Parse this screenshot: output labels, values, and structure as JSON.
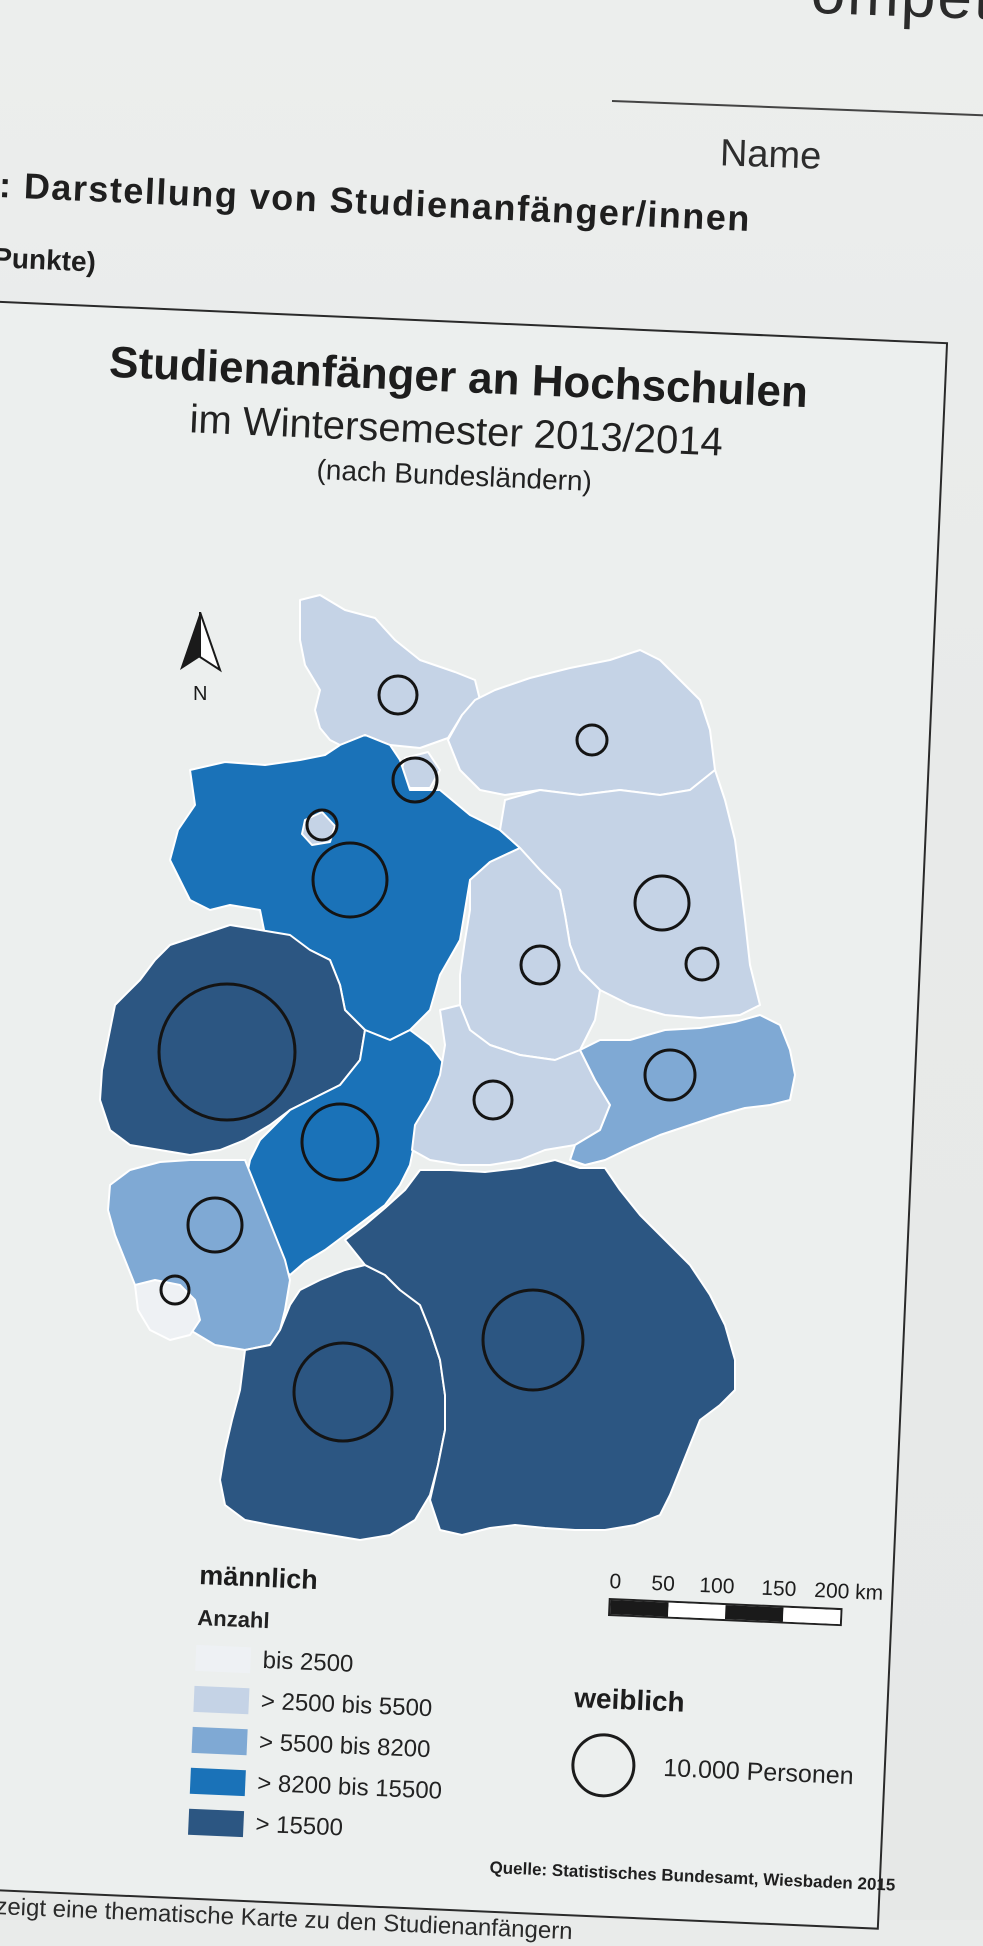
{
  "header": {
    "corner_text": "ompet",
    "name_label": "Name",
    "task_title": ": Darstellung von Studienanfänger/innen",
    "task_points": "Punkte)"
  },
  "map": {
    "title": "Studienanfänger an Hochschulen",
    "subtitle": "im Wintersemester 2013/2014",
    "subtitle2": "(nach Bundesländern)",
    "north_label": "N",
    "legend_male": {
      "heading": "männlich",
      "subheading": "Anzahl",
      "classes": [
        {
          "label": "bis 2500",
          "color": "#eef1f4"
        },
        {
          "label": "> 2500 bis 5500",
          "color": "#c5d3e6"
        },
        {
          "label": "> 5500 bis 8200",
          "color": "#7fa9d4"
        },
        {
          "label": "> 8200 bis 15500",
          "color": "#1a72b8"
        },
        {
          "label": "> 15500",
          "color": "#2c5682"
        }
      ]
    },
    "legend_female": {
      "heading": "weiblich",
      "circle_label": "10.000 Personen"
    },
    "scale": {
      "ticks": [
        "0",
        "50",
        "100",
        "150",
        "200 km"
      ]
    },
    "source": "Quelle: Statistisches Bundesamt, Wiesbaden 2015",
    "states": [
      {
        "name": "Schleswig-Holstein",
        "class": 1
      },
      {
        "name": "Mecklenburg-Vorpommern",
        "class": 1
      },
      {
        "name": "Hamburg",
        "class": 1
      },
      {
        "name": "Bremen",
        "class": 1
      },
      {
        "name": "Niedersachsen",
        "class": 3
      },
      {
        "name": "Berlin",
        "class": 2
      },
      {
        "name": "Brandenburg",
        "class": 1
      },
      {
        "name": "Sachsen-Anhalt",
        "class": 1
      },
      {
        "name": "Nordrhein-Westfalen",
        "class": 4
      },
      {
        "name": "Hessen",
        "class": 3
      },
      {
        "name": "Thüringen",
        "class": 1
      },
      {
        "name": "Sachsen",
        "class": 2
      },
      {
        "name": "Rheinland-Pfalz",
        "class": 2
      },
      {
        "name": "Saarland",
        "class": 0
      },
      {
        "name": "Baden-Württemberg",
        "class": 4
      },
      {
        "name": "Bayern",
        "class": 4
      }
    ]
  },
  "footer": {
    "next_text": "zeigt eine thematische Karte zu den Studienanfängern"
  }
}
